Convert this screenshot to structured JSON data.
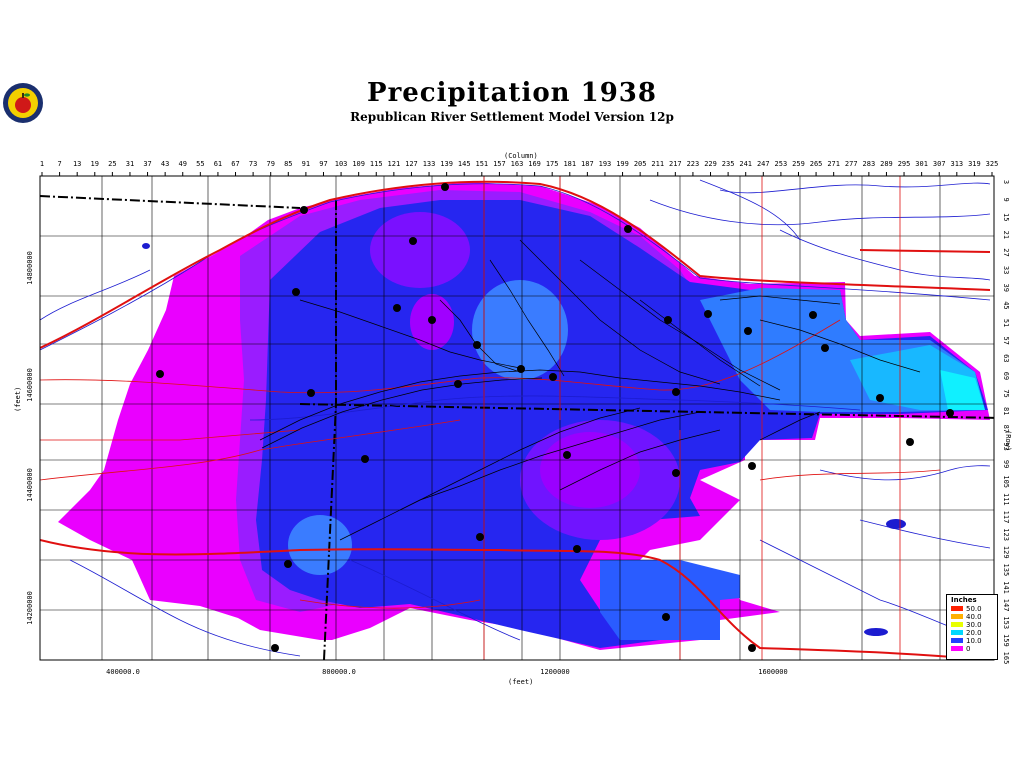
{
  "header": {
    "title": "Precipitation  1938",
    "subtitle": "Republican River Settlement Model Version 12p"
  },
  "axes": {
    "column_title": "(Column)",
    "row_title": "(Row)",
    "feet_y_title": "(feet)",
    "feet_x_title": "(feet)",
    "column_ticks": [
      "1",
      "7",
      "13",
      "19",
      "25",
      "31",
      "37",
      "43",
      "49",
      "55",
      "61",
      "67",
      "73",
      "79",
      "85",
      "91",
      "97",
      "103",
      "109",
      "115",
      "121",
      "127",
      "133",
      "139",
      "145",
      "151",
      "157",
      "163",
      "169",
      "175",
      "181",
      "187",
      "193",
      "199",
      "205",
      "211",
      "217",
      "223",
      "229",
      "235",
      "241",
      "247",
      "253",
      "259",
      "265",
      "271",
      "277",
      "283",
      "289",
      "295",
      "301",
      "307",
      "313",
      "319",
      "325"
    ],
    "row_ticks": [
      "3",
      "9",
      "15",
      "21",
      "27",
      "33",
      "39",
      "45",
      "51",
      "57",
      "63",
      "69",
      "75",
      "81",
      "87",
      "93",
      "99",
      "105",
      "111",
      "117",
      "123",
      "129",
      "135",
      "141",
      "147",
      "153",
      "159",
      "165"
    ],
    "feet_x_ticks": [
      "400000.0",
      "800000.0",
      "1200000",
      "1600000"
    ],
    "feet_y_ticks": [
      "14800000",
      "14600000",
      "14400000",
      "14200000"
    ]
  },
  "legend": {
    "title": "Inches",
    "items": [
      {
        "label": "50.0",
        "color": "#ff2000"
      },
      {
        "label": "40.0",
        "color": "#ffb000"
      },
      {
        "label": "30.0",
        "color": "#e8ff00"
      },
      {
        "label": "20.0",
        "color": "#00d8ff"
      },
      {
        "label": "10.0",
        "color": "#2040ff"
      },
      {
        "label": "0",
        "color": "#ff00ff"
      }
    ]
  },
  "colors": {
    "magenta": "#e000ff",
    "violet": "#8a20ff",
    "blue": "#2a2af5",
    "light_blue": "#2f8cff",
    "cyan": "#18d8ff",
    "river": "#1c1cd0",
    "road": "#e01010"
  }
}
